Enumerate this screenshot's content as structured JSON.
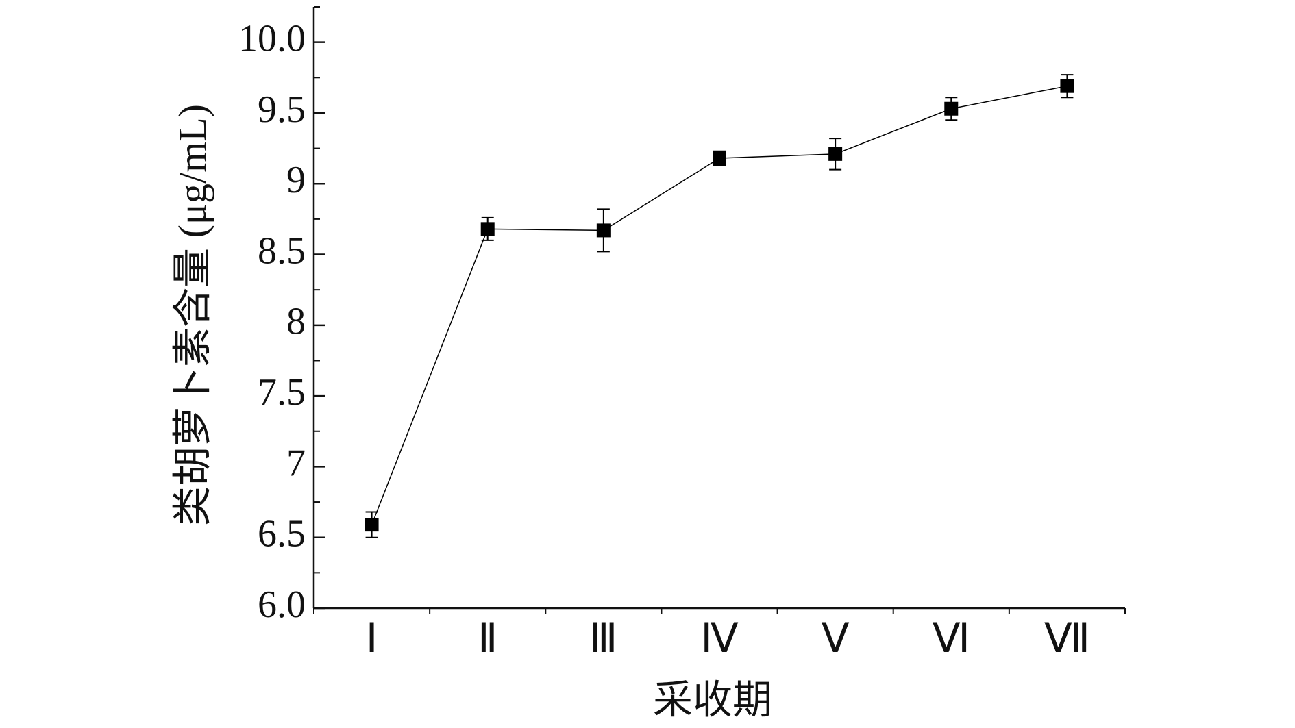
{
  "chart_data": {
    "type": "line",
    "xlabel": "采收期",
    "ylabel": "类胡萝卜素含量 (μg/mL)",
    "categories": [
      "Ⅰ",
      "Ⅱ",
      "Ⅲ",
      "Ⅳ",
      "Ⅴ",
      "Ⅵ",
      "Ⅶ"
    ],
    "series": [
      {
        "color": "#000000",
        "values": [
          6.59,
          8.68,
          8.67,
          9.18,
          9.21,
          9.53,
          9.69
        ],
        "errors": [
          0.09,
          0.08,
          0.15,
          0.05,
          0.11,
          0.08,
          0.08
        ]
      }
    ],
    "ylim": [
      6,
      10.25
    ],
    "yticks": [
      {
        "value": 6,
        "label": "6.0"
      },
      6.5,
      7.0,
      7.5,
      8.0,
      8.5,
      9.0,
      9.5,
      {
        "value": 10,
        "label": "10.0"
      }
    ],
    "yminorticks": [
      6.25,
      6.75,
      7.25,
      7.75,
      8.25,
      8.75,
      9.25,
      9.75,
      10.25
    ],
    "grid": false
  }
}
